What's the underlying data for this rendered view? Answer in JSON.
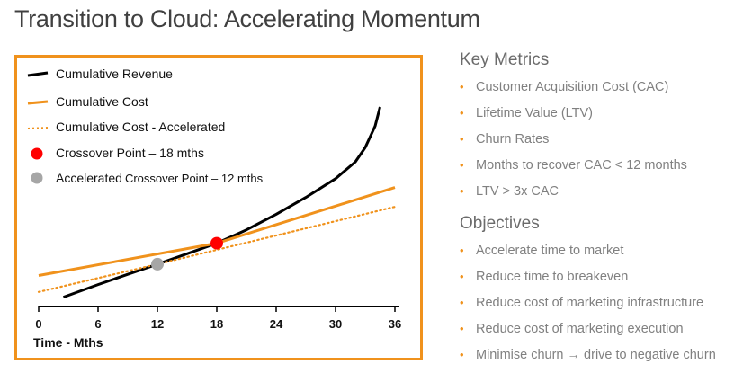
{
  "page": {
    "title": "Transition to Cloud: Accelerating Momentum"
  },
  "colors": {
    "accent": "#f0921c",
    "revenue": "#000000",
    "cost": "#f0921c",
    "crossover": "#ff0000",
    "accelerated_crossover": "#a6a6a6",
    "panel_text": "#808080",
    "heading_text": "#6b6b6b"
  },
  "chart_data": {
    "type": "line",
    "title": "",
    "xlabel": "Time - Mths",
    "ylabel": "",
    "xlim": [
      0,
      36
    ],
    "ylim": [
      0,
      100
    ],
    "x_ticks": [
      "0",
      "6",
      "12",
      "18",
      "24",
      "30",
      "36"
    ],
    "grid": false,
    "legend_position": "top-left",
    "legend": [
      {
        "label": "Cumulative Revenue",
        "style": "black-line"
      },
      {
        "label": "Cumulative Cost",
        "style": "orange-line"
      },
      {
        "label": "Cumulative Cost - Accelerated",
        "style": "orange-dotted-line"
      },
      {
        "label": "Crossover Point – 18 mths",
        "style": "red-dot"
      },
      {
        "label_prefix": "Accelerated",
        "label_suffix": "Crossover Point – 12 mths",
        "style": "grey-dot"
      }
    ],
    "series": [
      {
        "name": "Cumulative Revenue",
        "style": "solid",
        "color": "#000000",
        "x": [
          2.5,
          6,
          9,
          12,
          15,
          18,
          21,
          24,
          27,
          30,
          32,
          33,
          34,
          34.5
        ],
        "y": [
          1.6,
          8.3,
          13.7,
          19.1,
          24.6,
          30.2,
          37.3,
          45.5,
          54.5,
          64.4,
          73.3,
          80.9,
          92.3,
          102.4
        ]
      },
      {
        "name": "Cumulative Cost",
        "style": "solid",
        "color": "#f0921c",
        "x": [
          0,
          18,
          36
        ],
        "y": [
          13.1,
          30.2,
          59.7
        ]
      },
      {
        "name": "Cumulative Cost - Accelerated",
        "style": "dotted",
        "color": "#f0921c",
        "x": [
          0,
          12,
          36
        ],
        "y": [
          4.4,
          19.1,
          49.5
        ]
      }
    ],
    "points": [
      {
        "name": "Crossover Point",
        "x": 18,
        "y": 30.2,
        "color": "#ff0000"
      },
      {
        "name": "Accelerated Crossover Point",
        "x": 12,
        "y": 19.1,
        "color": "#a6a6a6"
      }
    ]
  },
  "side_panel": {
    "key_metrics": {
      "heading": "Key Metrics",
      "items": [
        "Customer Acquisition Cost (CAC)",
        "Lifetime Value (LTV)",
        "Churn Rates",
        "Months to recover CAC < 12 months",
        "LTV > 3x CAC"
      ]
    },
    "objectives": {
      "heading": "Objectives",
      "items": [
        "Accelerate time to market",
        "Reduce time to breakeven",
        "Reduce cost of marketing infrastructure",
        "Reduce cost of marketing execution",
        "Minimise churn → drive to negative churn"
      ]
    },
    "bullet_glyph": "•"
  }
}
